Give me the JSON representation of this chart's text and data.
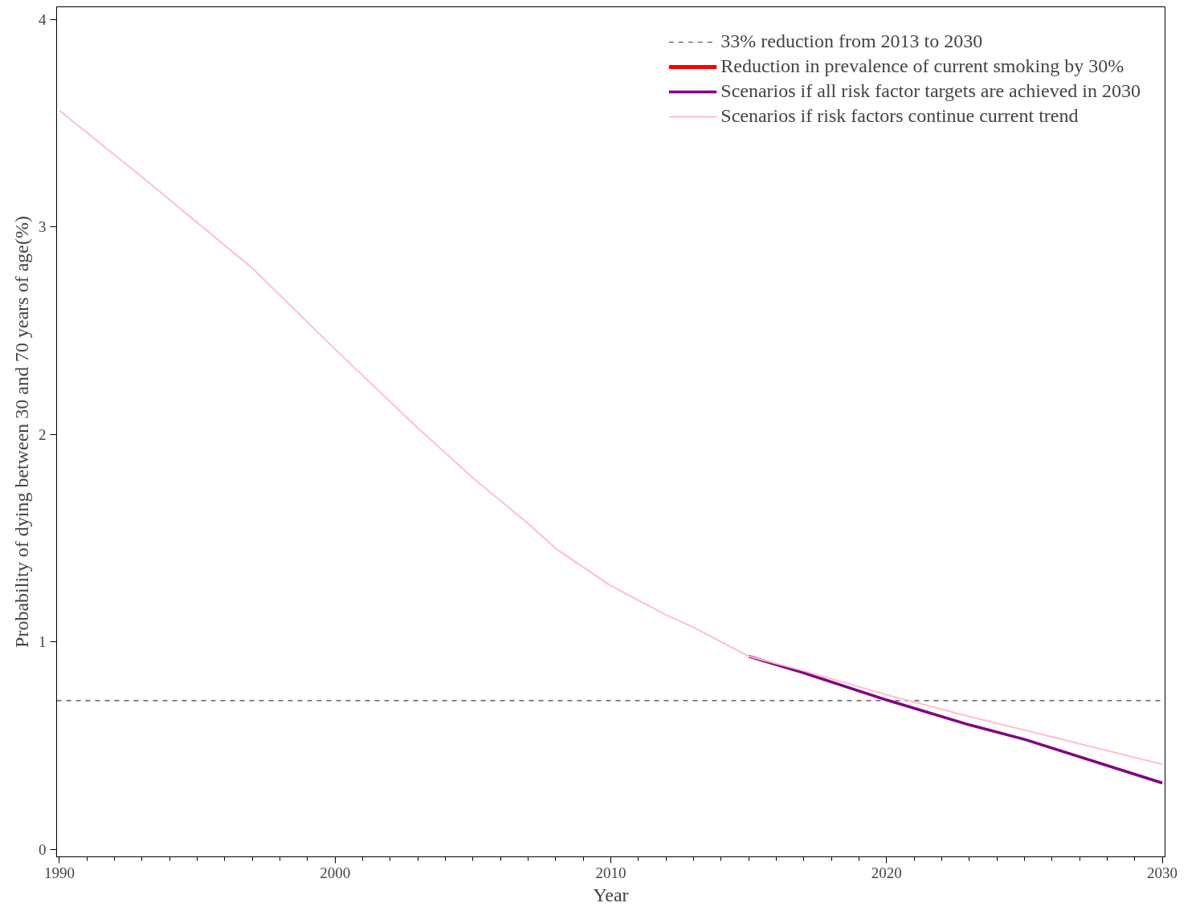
{
  "chart_data": {
    "type": "line",
    "xlabel": "Year",
    "ylabel": "Probability of dying between 30 and 70 years of age(%)",
    "x": [
      1990,
      1993,
      1995,
      1997,
      2000,
      2003,
      2005,
      2007,
      2008,
      2010,
      2012,
      2013,
      2015,
      2017,
      2020,
      2023,
      2025,
      2030
    ],
    "series": [
      {
        "name": "Reduction in prevalence of current smoking by 30%",
        "color": "#ff0000",
        "values": [
          null,
          null,
          null,
          null,
          null,
          null,
          null,
          null,
          null,
          null,
          null,
          null,
          null,
          null,
          null,
          null,
          null,
          null
        ]
      },
      {
        "name": "Scenarios if all risk factor targets are achieved in 2030",
        "color": "#800080",
        "values": [
          null,
          null,
          null,
          null,
          null,
          null,
          null,
          null,
          null,
          null,
          null,
          null,
          0.93,
          0.85,
          0.72,
          0.6,
          0.53,
          0.32
        ]
      },
      {
        "name": "Scenarios if risk factors continue current trend",
        "color": "#ffc0cb",
        "values": [
          3.56,
          3.24,
          3.02,
          2.8,
          2.41,
          2.03,
          1.79,
          1.57,
          1.45,
          1.27,
          1.13,
          1.07,
          0.93,
          0.86,
          0.745,
          0.64,
          0.575,
          0.41
        ]
      }
    ],
    "ref_lines": [
      {
        "axis": "y",
        "value": 0.717,
        "label": "33% reduction from 2013 to 2030",
        "color": "#404040",
        "line_style": "dashed"
      }
    ],
    "xlim": [
      1989.9,
      2030.1
    ],
    "xticks": [
      1990,
      2000,
      2010,
      2020,
      2030
    ],
    "ylim": [
      -0.036,
      4.06
    ],
    "yticks": [
      0,
      1,
      2,
      3,
      4
    ],
    "grid": false,
    "legend": "top right",
    "line_style": "solid",
    "marker": "none"
  }
}
